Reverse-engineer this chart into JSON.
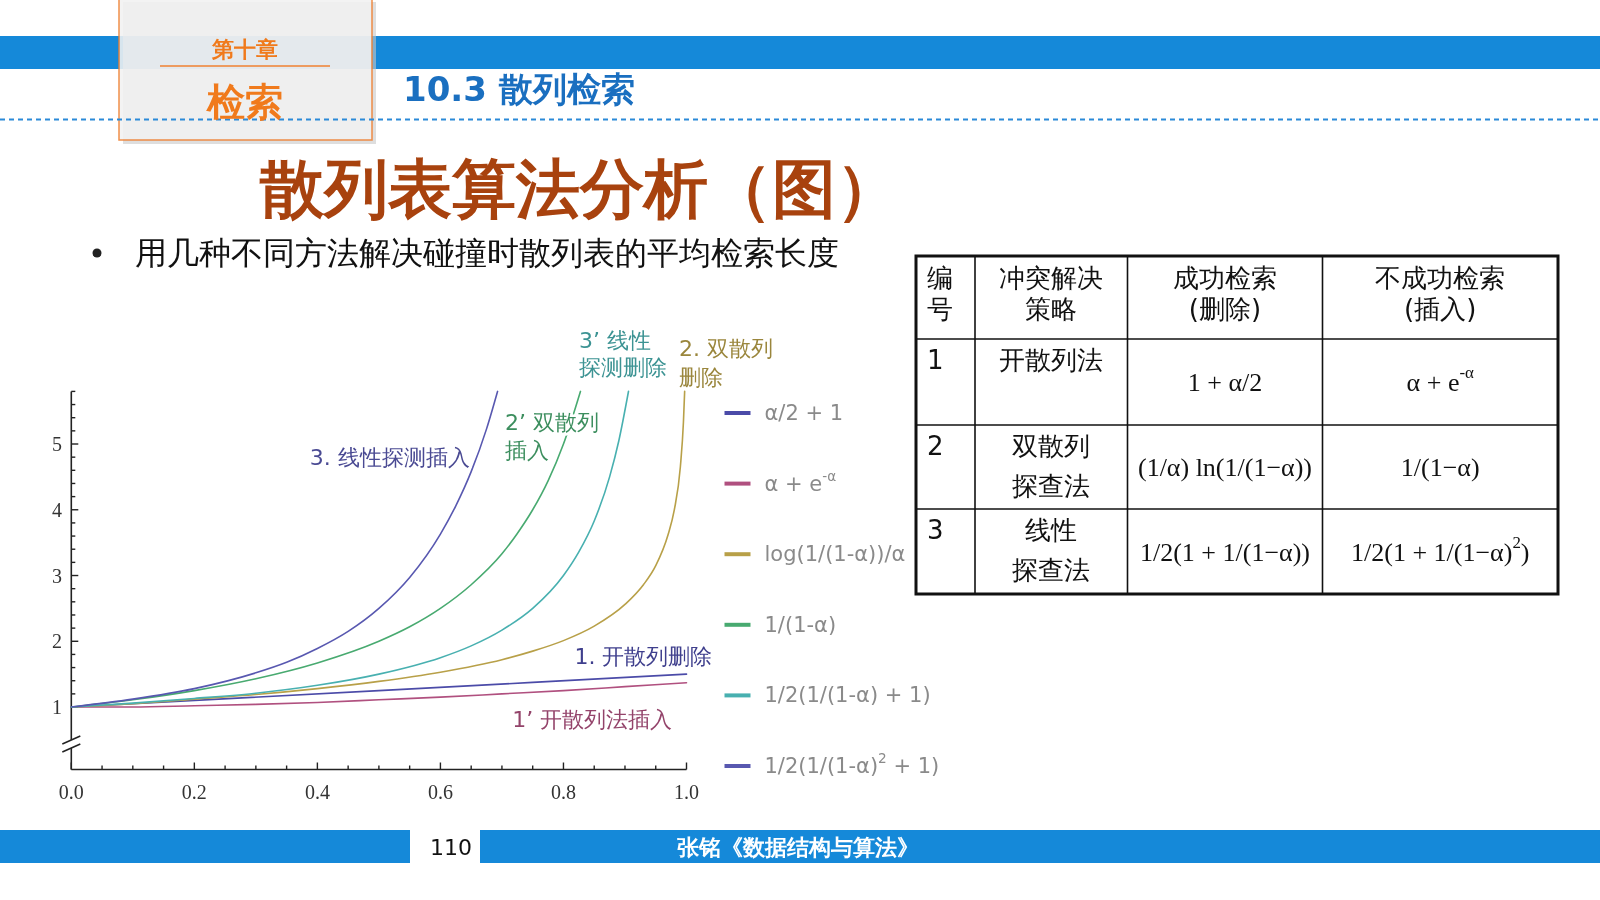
{
  "chart_data": [
    {
      "type": "line",
      "title": "散列表算法分析（图）",
      "subtitle": "用几种不同方法解决碰撞时散列表的平均检索长度",
      "annotations": [
        "第十章",
        "检索",
        "10.3 散列检索",
        {
          "text": "3. 线性探测插入",
          "x": 0.659,
          "y": 4.8
        },
        {
          "text": "2’ 双散列插入",
          "x": 0.8,
          "y": 5
        },
        {
          "text": "3’ 线性探测删除",
          "x": 0.9057,
          "y": 5.8
        },
        {
          "text": "2. 双散列删除",
          "x": 0.997,
          "y": 5.8
        },
        {
          "text": "1. 开散列删除",
          "x": 0.93,
          "y": 1.465
        },
        {
          "text": "1’ 开散列法插入",
          "x": 0.85,
          "y": 1.28
        },
        "110",
        "张铭《数据结构与算法》"
      ],
      "xlim": [
        0,
        1
      ],
      "xticks": [
        {
          "value": 0,
          "label": "0.0"
        },
        {
          "value": 0.05,
          "label": null
        },
        {
          "value": 0.1,
          "label": null
        },
        {
          "value": 0.15,
          "label": null
        },
        {
          "value": 0.2,
          "label": "0.2"
        },
        {
          "value": 0.25,
          "label": null
        },
        {
          "value": 0.3,
          "label": null
        },
        {
          "value": 0.35,
          "label": null
        },
        {
          "value": 0.4,
          "label": "0.4"
        },
        {
          "value": 0.45,
          "label": null
        },
        {
          "value": 0.5,
          "label": null
        },
        {
          "value": 0.55,
          "label": null
        },
        {
          "value": 0.6,
          "label": "0.6"
        },
        {
          "value": 0.65,
          "label": null
        },
        {
          "value": 0.7,
          "label": null
        },
        {
          "value": 0.75,
          "label": null
        },
        {
          "value": 0.8,
          "label": "0.8"
        },
        {
          "value": 0.85,
          "label": null
        },
        {
          "value": 0.9,
          "label": null
        },
        {
          "value": 0.95,
          "label": null
        },
        {
          "value": 1,
          "label": "1.0"
        }
      ],
      "ylim": [
        0.05,
        5.8
      ],
      "yticks": [
        1,
        {
          "value": 1.2,
          "label": null
        },
        {
          "value": 1.4,
          "label": null
        },
        {
          "value": 1.6,
          "label": null
        },
        {
          "value": 1.8,
          "label": null
        },
        2,
        {
          "value": 2.2,
          "label": null
        },
        {
          "value": 2.4,
          "label": null
        },
        {
          "value": 2.6,
          "label": null
        },
        {
          "value": 2.8,
          "label": null
        },
        3,
        {
          "value": 3.2,
          "label": null
        },
        {
          "value": 3.4,
          "label": null
        },
        {
          "value": 3.6,
          "label": null
        },
        {
          "value": 3.8,
          "label": null
        },
        4,
        {
          "value": 4.2,
          "label": null
        },
        {
          "value": 4.4,
          "label": null
        },
        {
          "value": 4.6,
          "label": null
        },
        {
          "value": 4.8,
          "label": null
        },
        5,
        {
          "value": 5.2,
          "label": null
        },
        {
          "value": 5.4,
          "label": null
        },
        {
          "value": 5.6,
          "label": null
        },
        {
          "value": 5.8,
          "label": null
        }
      ],
      "legend": "right",
      "series": [
        {
          "name": "α/2 + 1",
          "color": "#4b4ba8",
          "x": [
            0,
            0.5,
            1
          ],
          "values": [
            1,
            1.25,
            1.5
          ]
        },
        {
          "name": "α + e$^{-α}$",
          "color": "#b0507f",
          "x": [
            0,
            0.1,
            0.2,
            0.3,
            0.4,
            0.5,
            0.6,
            0.7,
            0.8,
            0.9,
            1
          ],
          "values": [
            1,
            1.0,
            1.02,
            1.04,
            1.07,
            1.11,
            1.15,
            1.2,
            1.25,
            1.31,
            1.37
          ]
        },
        {
          "name": "log(1/(1-α))/α",
          "color": "#b8a048",
          "x": [
            0,
            0.1,
            0.2,
            0.3,
            0.4,
            0.5,
            0.6,
            0.7,
            0.75,
            0.8,
            0.85,
            0.9,
            0.93,
            0.95,
            0.97,
            0.98,
            0.99,
            0.995,
            0.997
          ],
          "values": [
            1,
            1.05,
            1.12,
            1.19,
            1.28,
            1.39,
            1.53,
            1.72,
            1.85,
            2.01,
            2.23,
            2.56,
            2.86,
            3.15,
            3.62,
            3.99,
            4.65,
            5.33,
            5.8
          ]
        },
        {
          "name": "1/(1-α)",
          "color": "#48aa70",
          "x": [
            0,
            0.1,
            0.2,
            0.3,
            0.4,
            0.5,
            0.55,
            0.6,
            0.65,
            0.7,
            0.725,
            0.75,
            0.775,
            0.8,
            0.8276
          ],
          "values": [
            1,
            1.11,
            1.25,
            1.43,
            1.67,
            2,
            2.22,
            2.5,
            2.86,
            3.33,
            3.64,
            4,
            4.44,
            5,
            5.8
          ]
        },
        {
          "name": "1/2(1/(1-α) + 1)",
          "color": "#48b0b0",
          "x": [
            0,
            0.1,
            0.2,
            0.3,
            0.4,
            0.5,
            0.6,
            0.65,
            0.7,
            0.75,
            0.8,
            0.825,
            0.85,
            0.875,
            0.89,
            0.9057
          ],
          "values": [
            1,
            1.06,
            1.13,
            1.21,
            1.33,
            1.5,
            1.75,
            1.93,
            2.17,
            2.5,
            3,
            3.36,
            3.83,
            4.5,
            5.05,
            5.8
          ]
        },
        {
          "name": "1/2(1/(1-α)$^{2}$ + 1)",
          "color": "#5858b0",
          "x": [
            0,
            0.1,
            0.2,
            0.3,
            0.35,
            0.4,
            0.45,
            0.5,
            0.55,
            0.6,
            0.625,
            0.65,
            0.675,
            0.6929
          ],
          "values": [
            1,
            1.12,
            1.28,
            1.52,
            1.68,
            1.89,
            2.15,
            2.5,
            2.97,
            3.63,
            4.06,
            4.58,
            5.23,
            5.8
          ]
        }
      ]
    },
    {
      "type": "other",
      "categories": [
        "编号",
        "冲突解决策略",
        "成功检索(删除)",
        "不成功检索(插入)"
      ],
      "cell_labels": [
        [
          "1",
          "开散列法",
          "1 + α/2",
          "α + e$^{-α}$"
        ],
        [
          "2",
          "双散列探查法",
          "(1/α) ln(1/(1−α))",
          "1/(1−α)"
        ],
        [
          "3",
          "线性探查法",
          "1/2(1 + 1/(1−α))",
          "1/2(1 + 1/(1−α)$^{2}$)"
        ]
      ]
    }
  ]
}
